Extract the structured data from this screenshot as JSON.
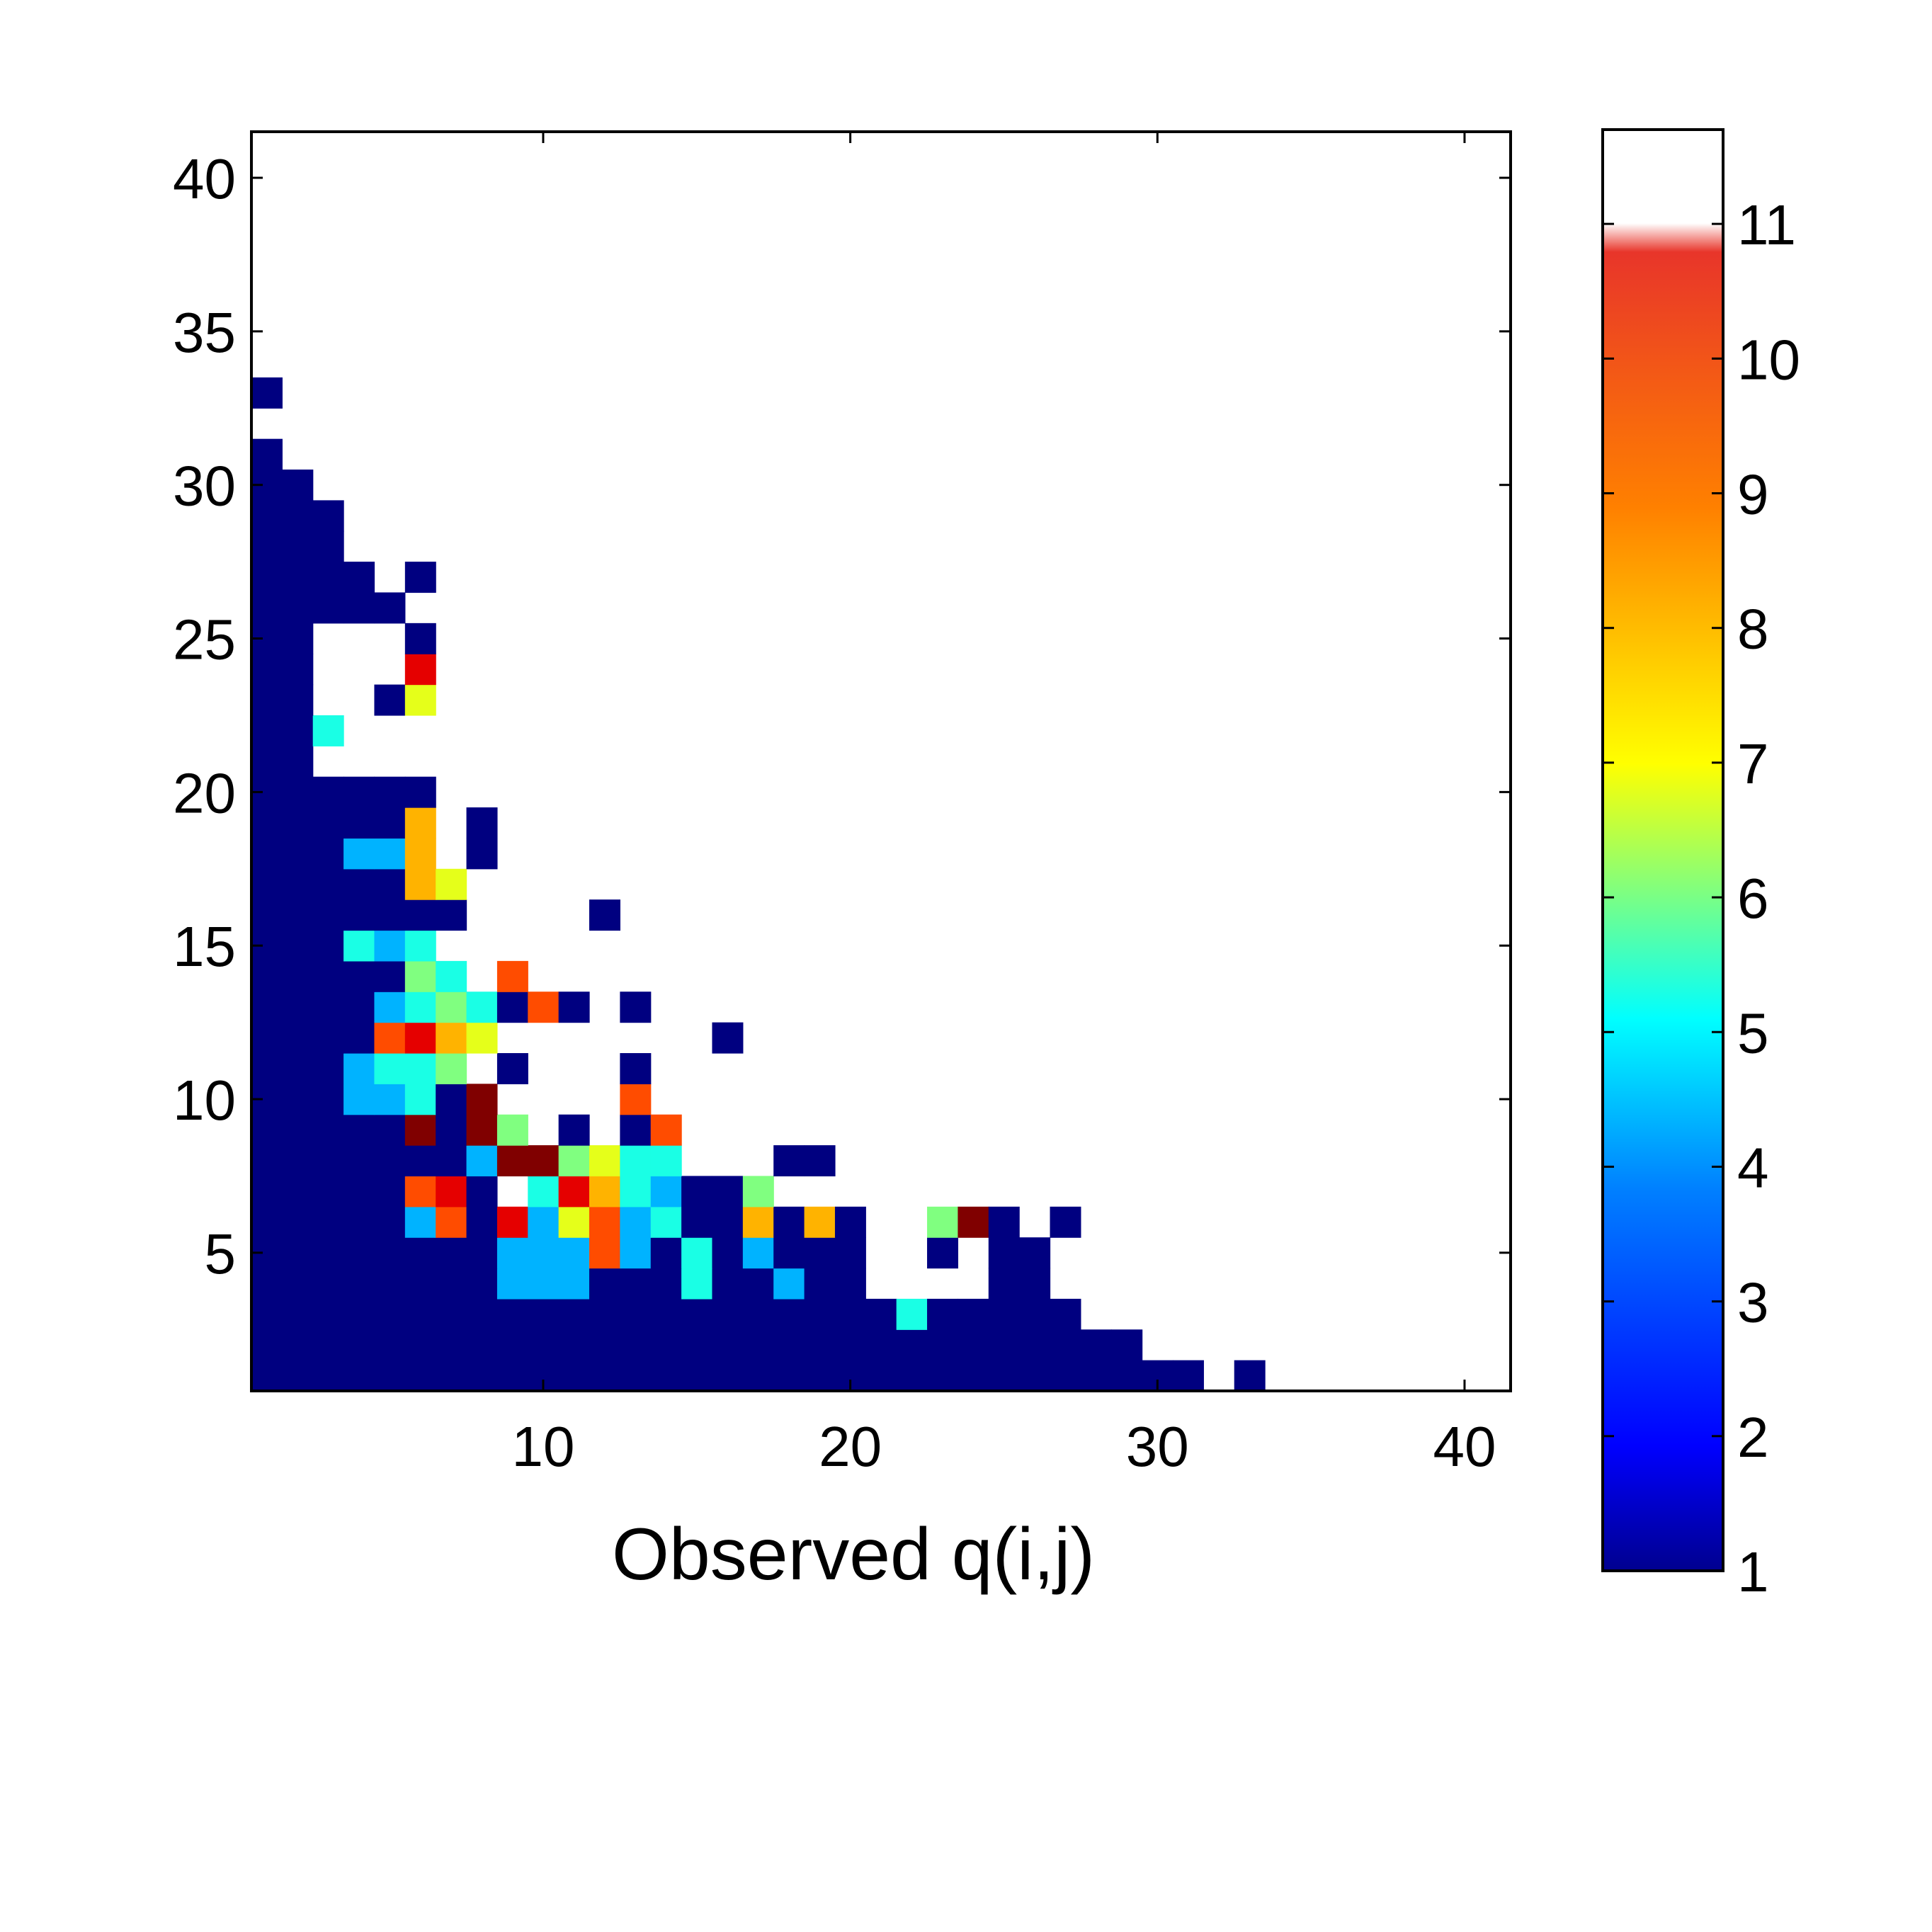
{
  "chart_data": {
    "type": "heatmap",
    "title": "",
    "xlabel": "Observed q(i,j)",
    "ylabel": "",
    "xlim": [
      0.5,
      41.5
    ],
    "ylim": [
      0.5,
      41.5
    ],
    "xticks": [
      10,
      20,
      30,
      40
    ],
    "yticks": [
      5,
      10,
      15,
      20,
      25,
      30,
      35,
      40
    ],
    "colormap": "jet",
    "missing_color": "#ffffff",
    "colorbar": {
      "range": [
        1,
        11.7
      ],
      "ticks": [
        1,
        2,
        3,
        4,
        5,
        6,
        7,
        8,
        9,
        10,
        11
      ]
    },
    "grid": false,
    "cells": [
      [
        1,
        1,
        1
      ],
      [
        2,
        1,
        1
      ],
      [
        3,
        1,
        1
      ],
      [
        4,
        1,
        1
      ],
      [
        5,
        1,
        1
      ],
      [
        6,
        1,
        1
      ],
      [
        7,
        1,
        1
      ],
      [
        8,
        1,
        1
      ],
      [
        9,
        1,
        1
      ],
      [
        10,
        1,
        1
      ],
      [
        11,
        1,
        1
      ],
      [
        12,
        1,
        1
      ],
      [
        13,
        1,
        1
      ],
      [
        14,
        1,
        1
      ],
      [
        15,
        1,
        1
      ],
      [
        16,
        1,
        1
      ],
      [
        17,
        1,
        1
      ],
      [
        18,
        1,
        1
      ],
      [
        19,
        1,
        1
      ],
      [
        20,
        1,
        1
      ],
      [
        21,
        1,
        1
      ],
      [
        22,
        1,
        1
      ],
      [
        23,
        1,
        1
      ],
      [
        24,
        1,
        1
      ],
      [
        25,
        1,
        1
      ],
      [
        26,
        1,
        1
      ],
      [
        27,
        1,
        1
      ],
      [
        28,
        1,
        1
      ],
      [
        29,
        1,
        1
      ],
      [
        30,
        1,
        1
      ],
      [
        31,
        1,
        1
      ],
      [
        33,
        1,
        1
      ],
      [
        1,
        2,
        1
      ],
      [
        2,
        2,
        1
      ],
      [
        3,
        2,
        1
      ],
      [
        4,
        2,
        1
      ],
      [
        5,
        2,
        1
      ],
      [
        6,
        2,
        1
      ],
      [
        7,
        2,
        1
      ],
      [
        8,
        2,
        1
      ],
      [
        9,
        2,
        1
      ],
      [
        10,
        2,
        1
      ],
      [
        11,
        2,
        1
      ],
      [
        12,
        2,
        1
      ],
      [
        13,
        2,
        1
      ],
      [
        14,
        2,
        1
      ],
      [
        15,
        2,
        1
      ],
      [
        16,
        2,
        1
      ],
      [
        17,
        2,
        1
      ],
      [
        18,
        2,
        1
      ],
      [
        19,
        2,
        1
      ],
      [
        20,
        2,
        1
      ],
      [
        21,
        2,
        1
      ],
      [
        22,
        2,
        1
      ],
      [
        23,
        2,
        1
      ],
      [
        24,
        2,
        1
      ],
      [
        25,
        2,
        1
      ],
      [
        26,
        2,
        1
      ],
      [
        27,
        2,
        1
      ],
      [
        28,
        2,
        1
      ],
      [
        29,
        2,
        1
      ],
      [
        1,
        3,
        1
      ],
      [
        2,
        3,
        1
      ],
      [
        3,
        3,
        1
      ],
      [
        4,
        3,
        1
      ],
      [
        5,
        3,
        1
      ],
      [
        6,
        3,
        1
      ],
      [
        7,
        3,
        1
      ],
      [
        8,
        3,
        1
      ],
      [
        9,
        3,
        1
      ],
      [
        10,
        3,
        1
      ],
      [
        11,
        3,
        1
      ],
      [
        12,
        3,
        1
      ],
      [
        13,
        3,
        1
      ],
      [
        14,
        3,
        1
      ],
      [
        15,
        3,
        1
      ],
      [
        16,
        3,
        1
      ],
      [
        17,
        3,
        1
      ],
      [
        18,
        3,
        1
      ],
      [
        19,
        3,
        1
      ],
      [
        20,
        3,
        1
      ],
      [
        21,
        3,
        1
      ],
      [
        22,
        3,
        5
      ],
      [
        23,
        3,
        1
      ],
      [
        24,
        3,
        1
      ],
      [
        25,
        3,
        1
      ],
      [
        26,
        3,
        1
      ],
      [
        27,
        3,
        1
      ],
      [
        1,
        4,
        1
      ],
      [
        2,
        4,
        1
      ],
      [
        3,
        4,
        1
      ],
      [
        4,
        4,
        1
      ],
      [
        5,
        4,
        1
      ],
      [
        6,
        4,
        1
      ],
      [
        7,
        4,
        1
      ],
      [
        8,
        4,
        1
      ],
      [
        9,
        4,
        4
      ],
      [
        10,
        4,
        4
      ],
      [
        11,
        4,
        4
      ],
      [
        12,
        4,
        1
      ],
      [
        13,
        4,
        1
      ],
      [
        14,
        4,
        1
      ],
      [
        15,
        4,
        5
      ],
      [
        16,
        4,
        1
      ],
      [
        17,
        4,
        1
      ],
      [
        18,
        4,
        4
      ],
      [
        19,
        4,
        1
      ],
      [
        20,
        4,
        1
      ],
      [
        25,
        4,
        1
      ],
      [
        26,
        4,
        1
      ],
      [
        1,
        5,
        1
      ],
      [
        2,
        5,
        1
      ],
      [
        3,
        5,
        1
      ],
      [
        4,
        5,
        1
      ],
      [
        5,
        5,
        1
      ],
      [
        6,
        5,
        1
      ],
      [
        7,
        5,
        1
      ],
      [
        8,
        5,
        1
      ],
      [
        9,
        5,
        4
      ],
      [
        10,
        5,
        4
      ],
      [
        11,
        5,
        4
      ],
      [
        12,
        5,
        9
      ],
      [
        13,
        5,
        4
      ],
      [
        14,
        5,
        1
      ],
      [
        15,
        5,
        5
      ],
      [
        16,
        5,
        1
      ],
      [
        17,
        5,
        4
      ],
      [
        18,
        5,
        1
      ],
      [
        19,
        5,
        1
      ],
      [
        20,
        5,
        1
      ],
      [
        23,
        5,
        1
      ],
      [
        25,
        5,
        1
      ],
      [
        26,
        5,
        1
      ],
      [
        1,
        6,
        1
      ],
      [
        2,
        6,
        1
      ],
      [
        3,
        6,
        1
      ],
      [
        4,
        6,
        1
      ],
      [
        5,
        6,
        1
      ],
      [
        6,
        6,
        4
      ],
      [
        7,
        6,
        9
      ],
      [
        8,
        6,
        1
      ],
      [
        9,
        6,
        10
      ],
      [
        10,
        6,
        4
      ],
      [
        11,
        6,
        7
      ],
      [
        12,
        6,
        9
      ],
      [
        13,
        6,
        4
      ],
      [
        14,
        6,
        5
      ],
      [
        15,
        6,
        1
      ],
      [
        16,
        6,
        1
      ],
      [
        17,
        6,
        8
      ],
      [
        18,
        6,
        1
      ],
      [
        19,
        6,
        8
      ],
      [
        20,
        6,
        1
      ],
      [
        23,
        6,
        6
      ],
      [
        24,
        6,
        11
      ],
      [
        25,
        6,
        1
      ],
      [
        27,
        6,
        1
      ],
      [
        1,
        7,
        1
      ],
      [
        2,
        7,
        1
      ],
      [
        3,
        7,
        1
      ],
      [
        4,
        7,
        1
      ],
      [
        5,
        7,
        1
      ],
      [
        6,
        7,
        9
      ],
      [
        7,
        7,
        10
      ],
      [
        8,
        7,
        1
      ],
      [
        10,
        7,
        5
      ],
      [
        11,
        7,
        10
      ],
      [
        12,
        7,
        8
      ],
      [
        13,
        7,
        5
      ],
      [
        14,
        7,
        4
      ],
      [
        15,
        7,
        1
      ],
      [
        16,
        7,
        1
      ],
      [
        17,
        7,
        6
      ],
      [
        1,
        8,
        1
      ],
      [
        2,
        8,
        1
      ],
      [
        3,
        8,
        1
      ],
      [
        4,
        8,
        1
      ],
      [
        5,
        8,
        1
      ],
      [
        6,
        8,
        1
      ],
      [
        7,
        8,
        1
      ],
      [
        8,
        8,
        4
      ],
      [
        9,
        8,
        11
      ],
      [
        10,
        8,
        11
      ],
      [
        11,
        8,
        6
      ],
      [
        12,
        8,
        7
      ],
      [
        13,
        8,
        5
      ],
      [
        14,
        8,
        5
      ],
      [
        18,
        8,
        1
      ],
      [
        19,
        8,
        1
      ],
      [
        1,
        9,
        1
      ],
      [
        2,
        9,
        1
      ],
      [
        3,
        9,
        1
      ],
      [
        4,
        9,
        1
      ],
      [
        5,
        9,
        1
      ],
      [
        6,
        9,
        11
      ],
      [
        7,
        9,
        1
      ],
      [
        8,
        9,
        11
      ],
      [
        9,
        9,
        6
      ],
      [
        11,
        9,
        1
      ],
      [
        13,
        9,
        1
      ],
      [
        14,
        9,
        9
      ],
      [
        1,
        10,
        1
      ],
      [
        2,
        10,
        1
      ],
      [
        3,
        10,
        1
      ],
      [
        4,
        10,
        4
      ],
      [
        5,
        10,
        4
      ],
      [
        6,
        10,
        5
      ],
      [
        7,
        10,
        1
      ],
      [
        8,
        10,
        11
      ],
      [
        13,
        10,
        9
      ],
      [
        1,
        11,
        1
      ],
      [
        2,
        11,
        1
      ],
      [
        3,
        11,
        1
      ],
      [
        4,
        11,
        4
      ],
      [
        5,
        11,
        5
      ],
      [
        6,
        11,
        5
      ],
      [
        7,
        11,
        6
      ],
      [
        9,
        11,
        1
      ],
      [
        13,
        11,
        1
      ],
      [
        1,
        12,
        1
      ],
      [
        2,
        12,
        1
      ],
      [
        3,
        12,
        1
      ],
      [
        4,
        12,
        1
      ],
      [
        5,
        12,
        9
      ],
      [
        6,
        12,
        10
      ],
      [
        7,
        12,
        8
      ],
      [
        8,
        12,
        7
      ],
      [
        16,
        12,
        1
      ],
      [
        1,
        13,
        1
      ],
      [
        2,
        13,
        1
      ],
      [
        3,
        13,
        1
      ],
      [
        4,
        13,
        1
      ],
      [
        5,
        13,
        4
      ],
      [
        6,
        13,
        5
      ],
      [
        7,
        13,
        6
      ],
      [
        8,
        13,
        5
      ],
      [
        9,
        13,
        1
      ],
      [
        10,
        13,
        9
      ],
      [
        11,
        13,
        1
      ],
      [
        13,
        13,
        1
      ],
      [
        1,
        14,
        1
      ],
      [
        2,
        14,
        1
      ],
      [
        3,
        14,
        1
      ],
      [
        4,
        14,
        1
      ],
      [
        5,
        14,
        1
      ],
      [
        6,
        14,
        6
      ],
      [
        7,
        14,
        5
      ],
      [
        9,
        14,
        9
      ],
      [
        1,
        15,
        1
      ],
      [
        2,
        15,
        1
      ],
      [
        3,
        15,
        1
      ],
      [
        4,
        15,
        5
      ],
      [
        5,
        15,
        4
      ],
      [
        6,
        15,
        5
      ],
      [
        1,
        16,
        1
      ],
      [
        2,
        16,
        1
      ],
      [
        3,
        16,
        1
      ],
      [
        4,
        16,
        1
      ],
      [
        5,
        16,
        1
      ],
      [
        6,
        16,
        1
      ],
      [
        7,
        16,
        1
      ],
      [
        12,
        16,
        1
      ],
      [
        1,
        17,
        1
      ],
      [
        2,
        17,
        1
      ],
      [
        3,
        17,
        1
      ],
      [
        4,
        17,
        1
      ],
      [
        5,
        17,
        1
      ],
      [
        6,
        17,
        8
      ],
      [
        7,
        17,
        7
      ],
      [
        1,
        18,
        1
      ],
      [
        2,
        18,
        1
      ],
      [
        3,
        18,
        1
      ],
      [
        4,
        18,
        4
      ],
      [
        5,
        18,
        4
      ],
      [
        6,
        18,
        8
      ],
      [
        8,
        18,
        1
      ],
      [
        1,
        19,
        1
      ],
      [
        2,
        19,
        1
      ],
      [
        3,
        19,
        1
      ],
      [
        4,
        19,
        1
      ],
      [
        5,
        19,
        1
      ],
      [
        6,
        19,
        8
      ],
      [
        8,
        19,
        1
      ],
      [
        1,
        20,
        1
      ],
      [
        2,
        20,
        1
      ],
      [
        3,
        20,
        1
      ],
      [
        4,
        20,
        1
      ],
      [
        5,
        20,
        1
      ],
      [
        6,
        20,
        1
      ],
      [
        1,
        21,
        1
      ],
      [
        2,
        21,
        1
      ],
      [
        1,
        22,
        1
      ],
      [
        2,
        22,
        1
      ],
      [
        3,
        22,
        5
      ],
      [
        1,
        23,
        1
      ],
      [
        2,
        23,
        1
      ],
      [
        5,
        23,
        1
      ],
      [
        6,
        23,
        7
      ],
      [
        1,
        24,
        1
      ],
      [
        2,
        24,
        1
      ],
      [
        6,
        24,
        10
      ],
      [
        1,
        25,
        1
      ],
      [
        2,
        25,
        1
      ],
      [
        6,
        25,
        1
      ],
      [
        1,
        26,
        1
      ],
      [
        2,
        26,
        1
      ],
      [
        3,
        26,
        1
      ],
      [
        4,
        26,
        1
      ],
      [
        5,
        26,
        1
      ],
      [
        1,
        27,
        1
      ],
      [
        2,
        27,
        1
      ],
      [
        3,
        27,
        1
      ],
      [
        4,
        27,
        1
      ],
      [
        6,
        27,
        1
      ],
      [
        1,
        28,
        1
      ],
      [
        2,
        28,
        1
      ],
      [
        3,
        28,
        1
      ],
      [
        1,
        29,
        1
      ],
      [
        2,
        29,
        1
      ],
      [
        3,
        29,
        1
      ],
      [
        1,
        30,
        1
      ],
      [
        2,
        30,
        1
      ],
      [
        1,
        31,
        1
      ],
      [
        1,
        33,
        1
      ]
    ]
  }
}
